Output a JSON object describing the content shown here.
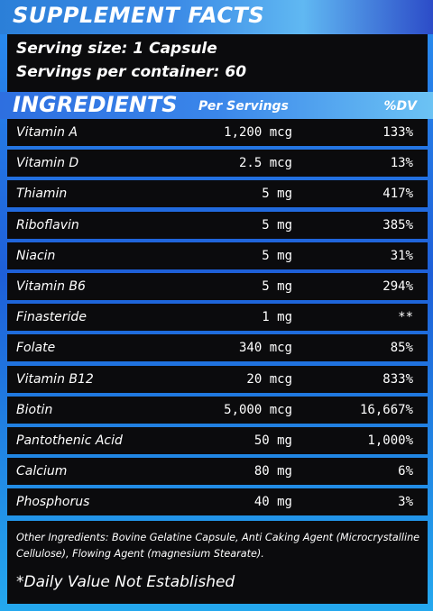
{
  "title": "SUPPLEMENT FACTS",
  "serving": {
    "size": "Serving size: 1 Capsule",
    "per_container": "Servings per container: 60"
  },
  "header": {
    "ingredients": "INGREDIENTS",
    "per_servings": "Per Servings",
    "dv": "%DV"
  },
  "rows": [
    {
      "name": "Vitamin A",
      "amount": "1,200 mcg",
      "dv": "133%"
    },
    {
      "name": "Vitamin D",
      "amount": "2.5 mcg",
      "dv": "13%"
    },
    {
      "name": "Thiamin",
      "amount": "5 mg",
      "dv": "417%"
    },
    {
      "name": "Riboflavin",
      "amount": "5 mg",
      "dv": "385%"
    },
    {
      "name": "Niacin",
      "amount": "5 mg",
      "dv": "31%"
    },
    {
      "name": "Vitamin B6",
      "amount": "5 mg",
      "dv": "294%"
    },
    {
      "name": "Finasteride",
      "amount": "1 mg",
      "dv": "**"
    },
    {
      "name": "Folate",
      "amount": "340 mcg",
      "dv": "85%"
    },
    {
      "name": "Vitamin B12",
      "amount": "20 mcg",
      "dv": "833%"
    },
    {
      "name": "Biotin",
      "amount": "5,000 mcg",
      "dv": "16,667%"
    },
    {
      "name": "Pantothenic Acid",
      "amount": "50 mg",
      "dv": "1,000%"
    },
    {
      "name": "Calcium",
      "amount": "80 mg",
      "dv": "6%"
    },
    {
      "name": "Phosphorus",
      "amount": "40 mg",
      "dv": "3%"
    }
  ],
  "other_ingredients": "Other Ingredients: Bovine Gelatine Capsule, Anti Caking Agent (Microcrystalline Cellulose), Flowing Agent (magnesium Stearate).",
  "footnote": "*Daily Value Not Established",
  "colors": {
    "accent_blue": "#2e6fe0",
    "light_blue": "#6cc3f4",
    "row_background": "#0b0b0d"
  }
}
